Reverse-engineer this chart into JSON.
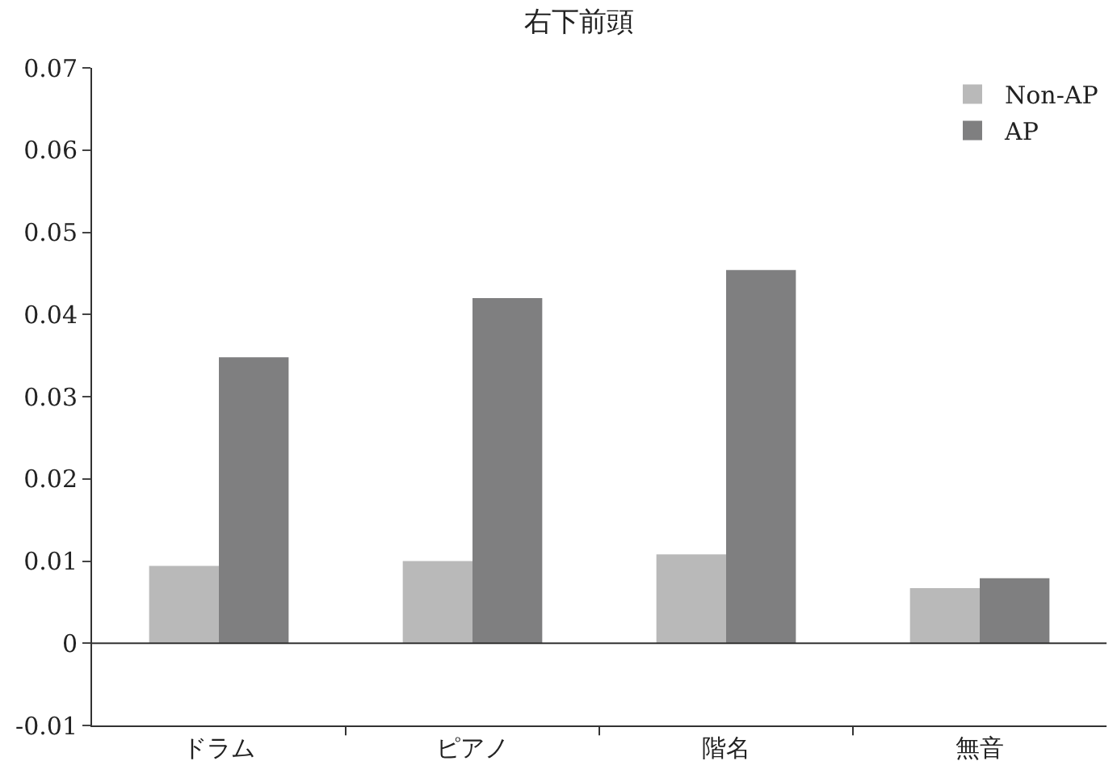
{
  "chart_data": {
    "type": "bar",
    "title": "右下前頭",
    "categories": [
      "ドラム",
      "ピアノ",
      "階名",
      "無音"
    ],
    "series": [
      {
        "name": "Non-AP",
        "color": "#b9b9b9",
        "values": [
          0.0094,
          0.01,
          0.0108,
          0.0067
        ]
      },
      {
        "name": "AP",
        "color": "#7f7f80",
        "values": [
          0.0348,
          0.042,
          0.0454,
          0.0079
        ]
      }
    ],
    "ylim": [
      -0.01,
      0.07
    ],
    "yticks": [
      -0.01,
      0,
      0.01,
      0.02,
      0.03,
      0.04,
      0.05,
      0.06,
      0.07
    ],
    "ref_lines": [
      {
        "axis": "y",
        "value": 0,
        "color": "#333333"
      }
    ],
    "grid": false,
    "legend": "top right"
  }
}
